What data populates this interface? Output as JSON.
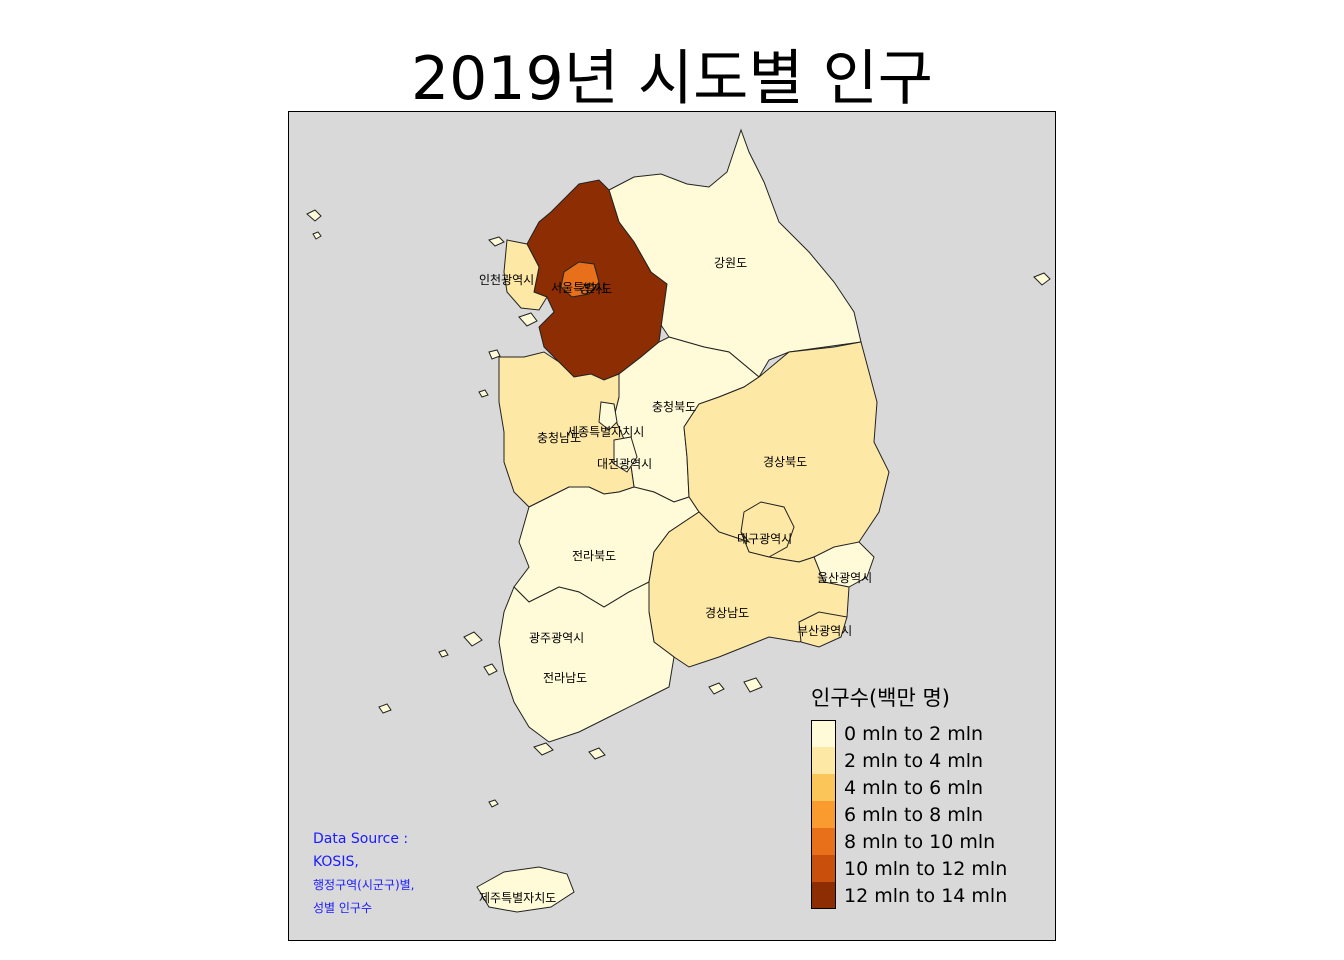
{
  "title": "2019년 시도별 인구",
  "legend": {
    "title": "인구수(백만 명)",
    "items": [
      {
        "label": "0 mln to 2 mln",
        "color": "#fffad7"
      },
      {
        "label": "2 mln to 4 mln",
        "color": "#fde8a6"
      },
      {
        "label": "4 mln to 6 mln",
        "color": "#fcc55a"
      },
      {
        "label": "6 mln to 8 mln",
        "color": "#f99b2e"
      },
      {
        "label": "8 mln to 10 mln",
        "color": "#e8701b"
      },
      {
        "label": "10 mln to 12 mln",
        "color": "#c8500c"
      },
      {
        "label": "12 mln to 14 mln",
        "color": "#8c2d04"
      }
    ]
  },
  "source": {
    "line1": "Data Source :",
    "line2": "KOSIS,",
    "line3": "행정구역(시군구)별,",
    "line4": "성별 인구수"
  },
  "regions": [
    {
      "name": "강원도",
      "color": "#fffad7"
    },
    {
      "name": "경기도",
      "color": "#8c2d04"
    },
    {
      "name": "서울특별시",
      "color": "#e8701b"
    },
    {
      "name": "인천광역시",
      "color": "#fde8a6"
    },
    {
      "name": "충청북도",
      "color": "#fffad7"
    },
    {
      "name": "충청남도",
      "color": "#fde8a6"
    },
    {
      "name": "세종특별자치시",
      "color": "#fffad7"
    },
    {
      "name": "대전광역시",
      "color": "#fffad7"
    },
    {
      "name": "경상북도",
      "color": "#fde8a6"
    },
    {
      "name": "대구광역시",
      "color": "#fde8a6"
    },
    {
      "name": "울산광역시",
      "color": "#fffad7"
    },
    {
      "name": "전라북도",
      "color": "#fffad7"
    },
    {
      "name": "경상남도",
      "color": "#fde8a6"
    },
    {
      "name": "부산광역시",
      "color": "#fde8a6"
    },
    {
      "name": "광주광역시",
      "color": "#fffad7"
    },
    {
      "name": "전라남도",
      "color": "#fffad7"
    },
    {
      "name": "제주특별자치도",
      "color": "#fffad7"
    }
  ]
}
